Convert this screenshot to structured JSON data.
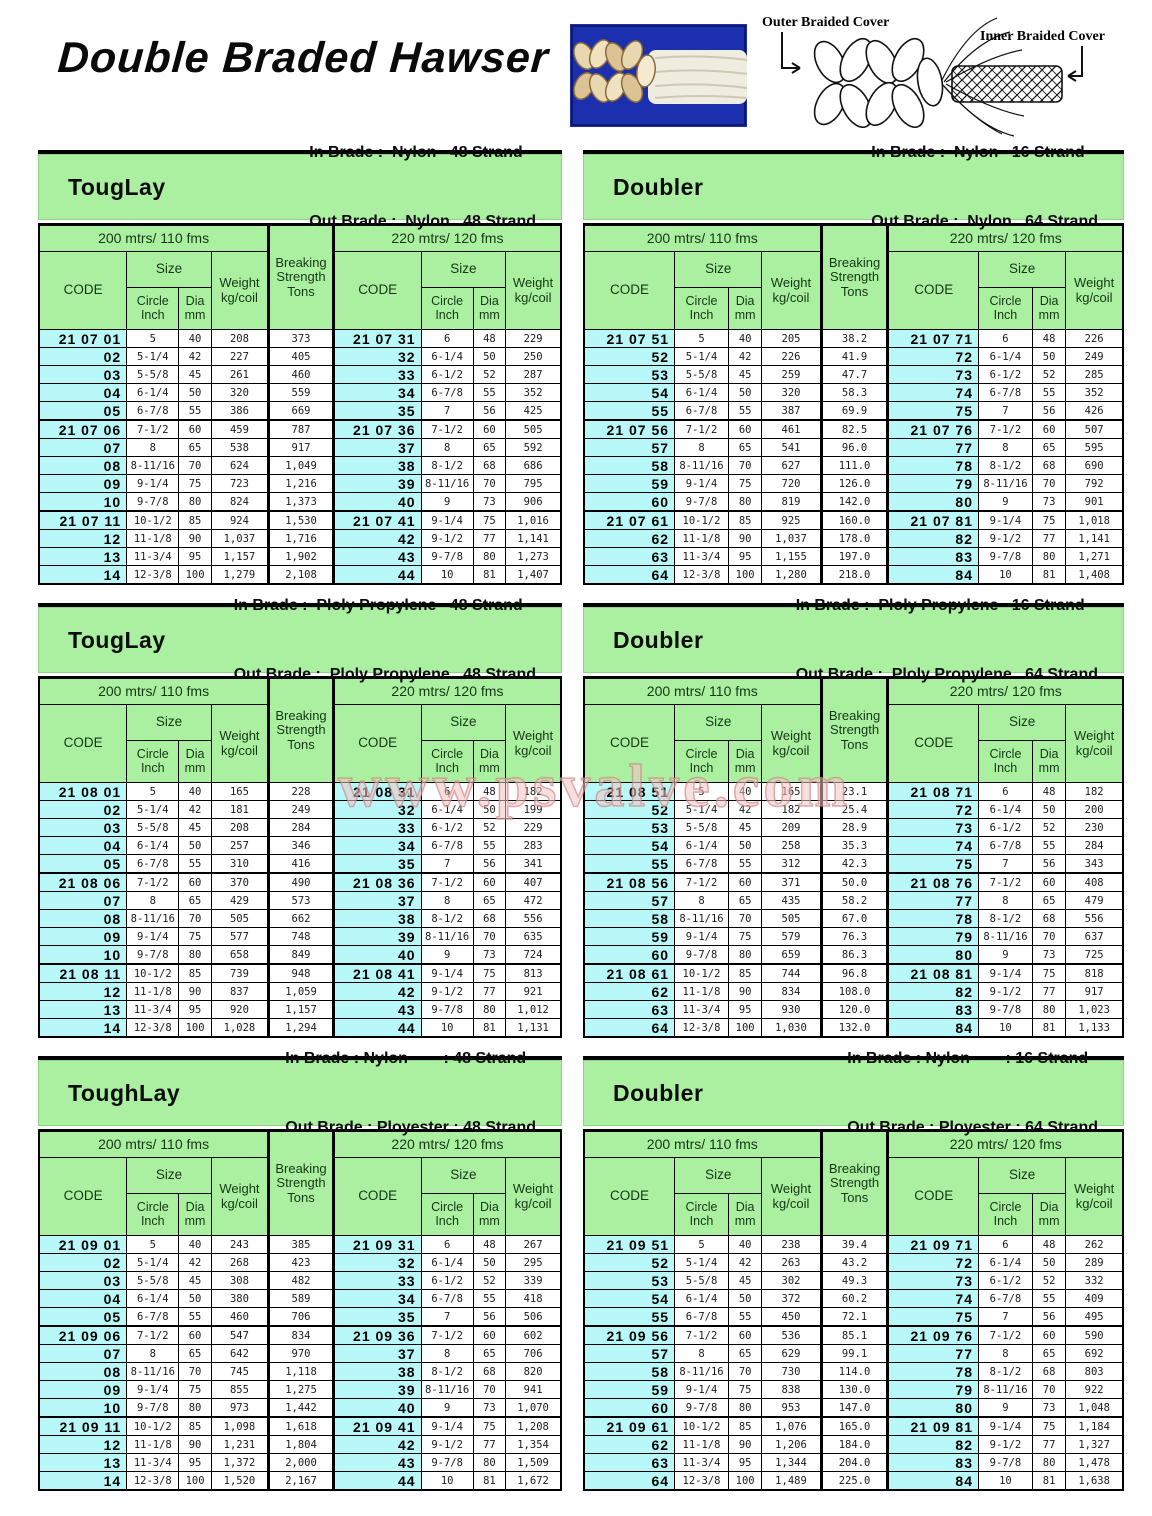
{
  "page": {
    "title": "Double Braded Hawser",
    "watermark": "www.psvalve.com"
  },
  "colors": {
    "header_green": "#aaf0a0",
    "code_cyan": "#b8f8f8",
    "watermark_pink": "#e9b7b7",
    "photo_blue": "#1c2fae"
  },
  "diagram": {
    "outer_label": "Outer Braided Cover",
    "inner_label": "Inner Braided Cover"
  },
  "labels": {
    "band_left": "200 mtrs/ 110 fms",
    "band_right": "220 mtrs/ 120 fms",
    "code": "CODE",
    "size": "Size",
    "circle": "Circle\nInch",
    "dia": "Dia\nmm",
    "weight": "Weight\nkg/coil",
    "breaking": "Breaking\nStrength\nTons"
  },
  "tables": [
    {
      "name": "TougLay",
      "in_brade": "In Brade :  Nylon   48 Strand",
      "out_brade": "Out Brade :  Nylon   48 Strand",
      "rows": [
        [
          "21 07 01",
          "5",
          "40",
          "208",
          "373",
          "21 07 31",
          "6",
          "48",
          "229"
        ],
        [
          "02",
          "5-1/4",
          "42",
          "227",
          "405",
          "32",
          "6-1/4",
          "50",
          "250"
        ],
        [
          "03",
          "5-5/8",
          "45",
          "261",
          "460",
          "33",
          "6-1/2",
          "52",
          "287"
        ],
        [
          "04",
          "6-1/4",
          "50",
          "320",
          "559",
          "34",
          "6-7/8",
          "55",
          "352"
        ],
        [
          "05",
          "6-7/8",
          "55",
          "386",
          "669",
          "35",
          "7",
          "56",
          "425"
        ],
        [
          "21 07 06",
          "7-1/2",
          "60",
          "459",
          "787",
          "21 07 36",
          "7-1/2",
          "60",
          "505"
        ],
        [
          "07",
          "8",
          "65",
          "538",
          "917",
          "37",
          "8",
          "65",
          "592"
        ],
        [
          "08",
          "8-11/16",
          "70",
          "624",
          "1,049",
          "38",
          "8-1/2",
          "68",
          "686"
        ],
        [
          "09",
          "9-1/4",
          "75",
          "723",
          "1,216",
          "39",
          "8-11/16",
          "70",
          "795"
        ],
        [
          "10",
          "9-7/8",
          "80",
          "824",
          "1,373",
          "40",
          "9",
          "73",
          "906"
        ],
        [
          "21 07 11",
          "10-1/2",
          "85",
          "924",
          "1,530",
          "21 07 41",
          "9-1/4",
          "75",
          "1,016"
        ],
        [
          "12",
          "11-1/8",
          "90",
          "1,037",
          "1,716",
          "42",
          "9-1/2",
          "77",
          "1,141"
        ],
        [
          "13",
          "11-3/4",
          "95",
          "1,157",
          "1,902",
          "43",
          "9-7/8",
          "80",
          "1,273"
        ],
        [
          "14",
          "12-3/8",
          "100",
          "1,279",
          "2,108",
          "44",
          "10",
          "81",
          "1,407"
        ]
      ]
    },
    {
      "name": "Doubler",
      "in_brade": "In Brade :  Nylon   16 Strand",
      "out_brade": "Out Brade :  Nylon   64 Strand",
      "rows": [
        [
          "21 07 51",
          "5",
          "40",
          "205",
          "38.2",
          "21 07 71",
          "6",
          "48",
          "226"
        ],
        [
          "52",
          "5-1/4",
          "42",
          "226",
          "41.9",
          "72",
          "6-1/4",
          "50",
          "249"
        ],
        [
          "53",
          "5-5/8",
          "45",
          "259",
          "47.7",
          "73",
          "6-1/2",
          "52",
          "285"
        ],
        [
          "54",
          "6-1/4",
          "50",
          "320",
          "58.3",
          "74",
          "6-7/8",
          "55",
          "352"
        ],
        [
          "55",
          "6-7/8",
          "55",
          "387",
          "69.9",
          "75",
          "7",
          "56",
          "426"
        ],
        [
          "21 07 56",
          "7-1/2",
          "60",
          "461",
          "82.5",
          "21 07 76",
          "7-1/2",
          "60",
          "507"
        ],
        [
          "57",
          "8",
          "65",
          "541",
          "96.0",
          "77",
          "8",
          "65",
          "595"
        ],
        [
          "58",
          "8-11/16",
          "70",
          "627",
          "111.0",
          "78",
          "8-1/2",
          "68",
          "690"
        ],
        [
          "59",
          "9-1/4",
          "75",
          "720",
          "126.0",
          "79",
          "8-11/16",
          "70",
          "792"
        ],
        [
          "60",
          "9-7/8",
          "80",
          "819",
          "142.0",
          "80",
          "9",
          "73",
          "901"
        ],
        [
          "21 07 61",
          "10-1/2",
          "85",
          "925",
          "160.0",
          "21 07 81",
          "9-1/4",
          "75",
          "1,018"
        ],
        [
          "62",
          "11-1/8",
          "90",
          "1,037",
          "178.0",
          "82",
          "9-1/2",
          "77",
          "1,141"
        ],
        [
          "63",
          "11-3/4",
          "95",
          "1,155",
          "197.0",
          "83",
          "9-7/8",
          "80",
          "1,271"
        ],
        [
          "64",
          "12-3/8",
          "100",
          "1,280",
          "218.0",
          "84",
          "10",
          "81",
          "1,408"
        ]
      ]
    },
    {
      "name": "TougLay",
      "in_brade": "In Brade :  Ploly Propylene   48 Strand",
      "out_brade": "Out Brade :  Ploly Propylene   48 Strand",
      "rows": [
        [
          "21 08 01",
          "5",
          "40",
          "165",
          "228",
          "21 08 31",
          "6",
          "48",
          "182"
        ],
        [
          "02",
          "5-1/4",
          "42",
          "181",
          "249",
          "32",
          "6-1/4",
          "50",
          "199"
        ],
        [
          "03",
          "5-5/8",
          "45",
          "208",
          "284",
          "33",
          "6-1/2",
          "52",
          "229"
        ],
        [
          "04",
          "6-1/4",
          "50",
          "257",
          "346",
          "34",
          "6-7/8",
          "55",
          "283"
        ],
        [
          "05",
          "6-7/8",
          "55",
          "310",
          "416",
          "35",
          "7",
          "56",
          "341"
        ],
        [
          "21 08 06",
          "7-1/2",
          "60",
          "370",
          "490",
          "21 08 36",
          "7-1/2",
          "60",
          "407"
        ],
        [
          "07",
          "8",
          "65",
          "429",
          "573",
          "37",
          "8",
          "65",
          "472"
        ],
        [
          "08",
          "8-11/16",
          "70",
          "505",
          "662",
          "38",
          "8-1/2",
          "68",
          "556"
        ],
        [
          "09",
          "9-1/4",
          "75",
          "577",
          "748",
          "39",
          "8-11/16",
          "70",
          "635"
        ],
        [
          "10",
          "9-7/8",
          "80",
          "658",
          "849",
          "40",
          "9",
          "73",
          "724"
        ],
        [
          "21 08 11",
          "10-1/2",
          "85",
          "739",
          "948",
          "21 08 41",
          "9-1/4",
          "75",
          "813"
        ],
        [
          "12",
          "11-1/8",
          "90",
          "837",
          "1,059",
          "42",
          "9-1/2",
          "77",
          "921"
        ],
        [
          "13",
          "11-3/4",
          "95",
          "920",
          "1,157",
          "43",
          "9-7/8",
          "80",
          "1,012"
        ],
        [
          "14",
          "12-3/8",
          "100",
          "1,028",
          "1,294",
          "44",
          "10",
          "81",
          "1,131"
        ]
      ]
    },
    {
      "name": "Doubler",
      "in_brade": "In Brade :  Ploly Propylene   16 Strand",
      "out_brade": "Out Brade :  Ploly Propylene   64 Strand",
      "rows": [
        [
          "21 08 51",
          "5",
          "40",
          "165",
          "23.1",
          "21 08 71",
          "6",
          "48",
          "182"
        ],
        [
          "52",
          "5-1/4",
          "42",
          "182",
          "25.4",
          "72",
          "6-1/4",
          "50",
          "200"
        ],
        [
          "53",
          "5-5/8",
          "45",
          "209",
          "28.9",
          "73",
          "6-1/2",
          "52",
          "230"
        ],
        [
          "54",
          "6-1/4",
          "50",
          "258",
          "35.3",
          "74",
          "6-7/8",
          "55",
          "284"
        ],
        [
          "55",
          "6-7/8",
          "55",
          "312",
          "42.3",
          "75",
          "7",
          "56",
          "343"
        ],
        [
          "21 08 56",
          "7-1/2",
          "60",
          "371",
          "50.0",
          "21 08 76",
          "7-1/2",
          "60",
          "408"
        ],
        [
          "57",
          "8",
          "65",
          "435",
          "58.2",
          "77",
          "8",
          "65",
          "479"
        ],
        [
          "58",
          "8-11/16",
          "70",
          "505",
          "67.0",
          "78",
          "8-1/2",
          "68",
          "556"
        ],
        [
          "59",
          "9-1/4",
          "75",
          "579",
          "76.3",
          "79",
          "8-11/16",
          "70",
          "637"
        ],
        [
          "60",
          "9-7/8",
          "80",
          "659",
          "86.3",
          "80",
          "9",
          "73",
          "725"
        ],
        [
          "21 08 61",
          "10-1/2",
          "85",
          "744",
          "96.8",
          "21 08 81",
          "9-1/4",
          "75",
          "818"
        ],
        [
          "62",
          "11-1/8",
          "90",
          "834",
          "108.0",
          "82",
          "9-1/2",
          "77",
          "917"
        ],
        [
          "63",
          "11-3/4",
          "95",
          "930",
          "120.0",
          "83",
          "9-7/8",
          "80",
          "1,023"
        ],
        [
          "64",
          "12-3/8",
          "100",
          "1,030",
          "132.0",
          "84",
          "10",
          "81",
          "1,133"
        ]
      ]
    },
    {
      "name": "ToughLay",
      "in_brade": "In Brade : Nylon        : 48 Strand",
      "out_brade": "Out Brade : Ployester : 48 Strand",
      "rows": [
        [
          "21 09 01",
          "5",
          "40",
          "243",
          "385",
          "21 09 31",
          "6",
          "48",
          "267"
        ],
        [
          "02",
          "5-1/4",
          "42",
          "268",
          "423",
          "32",
          "6-1/4",
          "50",
          "295"
        ],
        [
          "03",
          "5-5/8",
          "45",
          "308",
          "482",
          "33",
          "6-1/2",
          "52",
          "339"
        ],
        [
          "04",
          "6-1/4",
          "50",
          "380",
          "589",
          "34",
          "6-7/8",
          "55",
          "418"
        ],
        [
          "05",
          "6-7/8",
          "55",
          "460",
          "706",
          "35",
          "7",
          "56",
          "506"
        ],
        [
          "21 09 06",
          "7-1/2",
          "60",
          "547",
          "834",
          "21 09 36",
          "7-1/2",
          "60",
          "602"
        ],
        [
          "07",
          "8",
          "65",
          "642",
          "970",
          "37",
          "8",
          "65",
          "706"
        ],
        [
          "08",
          "8-11/16",
          "70",
          "745",
          "1,118",
          "38",
          "8-1/2",
          "68",
          "820"
        ],
        [
          "09",
          "9-1/4",
          "75",
          "855",
          "1,275",
          "39",
          "8-11/16",
          "70",
          "941"
        ],
        [
          "10",
          "9-7/8",
          "80",
          "973",
          "1,442",
          "40",
          "9",
          "73",
          "1,070"
        ],
        [
          "21 09 11",
          "10-1/2",
          "85",
          "1,098",
          "1,618",
          "21 09 41",
          "9-1/4",
          "75",
          "1,208"
        ],
        [
          "12",
          "11-1/8",
          "90",
          "1,231",
          "1,804",
          "42",
          "9-1/2",
          "77",
          "1,354"
        ],
        [
          "13",
          "11-3/4",
          "95",
          "1,372",
          "2,000",
          "43",
          "9-7/8",
          "80",
          "1,509"
        ],
        [
          "14",
          "12-3/8",
          "100",
          "1,520",
          "2,167",
          "44",
          "10",
          "81",
          "1,672"
        ]
      ]
    },
    {
      "name": "Doubler",
      "in_brade": "In Brade : Nylon        : 16 Strand",
      "out_brade": "Out Brade : Ployester : 64 Strand",
      "rows": [
        [
          "21 09 51",
          "5",
          "40",
          "238",
          "39.4",
          "21 09 71",
          "6",
          "48",
          "262"
        ],
        [
          "52",
          "5-1/4",
          "42",
          "263",
          "43.2",
          "72",
          "6-1/4",
          "50",
          "289"
        ],
        [
          "53",
          "5-5/8",
          "45",
          "302",
          "49.3",
          "73",
          "6-1/2",
          "52",
          "332"
        ],
        [
          "54",
          "6-1/4",
          "50",
          "372",
          "60.2",
          "74",
          "6-7/8",
          "55",
          "409"
        ],
        [
          "55",
          "6-7/8",
          "55",
          "450",
          "72.1",
          "75",
          "7",
          "56",
          "495"
        ],
        [
          "21 09 56",
          "7-1/2",
          "60",
          "536",
          "85.1",
          "21 09 76",
          "7-1/2",
          "60",
          "590"
        ],
        [
          "57",
          "8",
          "65",
          "629",
          "99.1",
          "77",
          "8",
          "65",
          "692"
        ],
        [
          "58",
          "8-11/16",
          "70",
          "730",
          "114.0",
          "78",
          "8-1/2",
          "68",
          "803"
        ],
        [
          "59",
          "9-1/4",
          "75",
          "838",
          "130.0",
          "79",
          "8-11/16",
          "70",
          "922"
        ],
        [
          "60",
          "9-7/8",
          "80",
          "953",
          "147.0",
          "80",
          "9",
          "73",
          "1,048"
        ],
        [
          "21 09 61",
          "10-1/2",
          "85",
          "1,076",
          "165.0",
          "21 09 81",
          "9-1/4",
          "75",
          "1,184"
        ],
        [
          "62",
          "11-1/8",
          "90",
          "1,206",
          "184.0",
          "82",
          "9-1/2",
          "77",
          "1,327"
        ],
        [
          "63",
          "11-3/4",
          "95",
          "1,344",
          "204.0",
          "83",
          "9-7/8",
          "80",
          "1,478"
        ],
        [
          "64",
          "12-3/8",
          "100",
          "1,489",
          "225.0",
          "84",
          "10",
          "81",
          "1,638"
        ]
      ]
    }
  ]
}
